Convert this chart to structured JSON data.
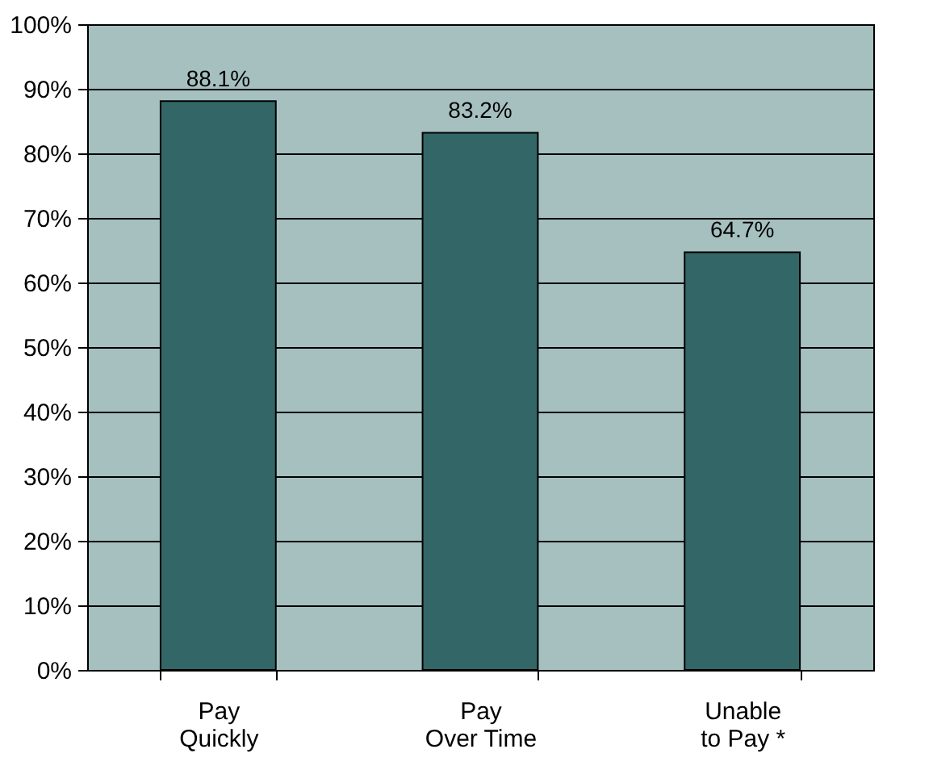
{
  "chart_data": {
    "type": "bar",
    "categories": [
      "Pay\nQuickly",
      "Pay\nOver Time",
      "Unable\nto Pay *"
    ],
    "values": [
      88.1,
      83.2,
      64.7
    ],
    "value_labels": [
      "88.1%",
      "83.2%",
      "64.7%"
    ],
    "color": "#336666",
    "ylim": [
      0,
      100
    ],
    "yticks": [
      {
        "value": 0,
        "label": "0%"
      },
      {
        "value": 10,
        "label": "10%"
      },
      {
        "value": 20,
        "label": "20%"
      },
      {
        "value": 30,
        "label": "30%"
      },
      {
        "value": 40,
        "label": "40%"
      },
      {
        "value": 50,
        "label": "50%"
      },
      {
        "value": 60,
        "label": "60%"
      },
      {
        "value": 70,
        "label": "70%"
      },
      {
        "value": 80,
        "label": "80%"
      },
      {
        "value": 90,
        "label": "90%"
      },
      {
        "value": 100,
        "label": "100%"
      }
    ],
    "grid": "y"
  }
}
